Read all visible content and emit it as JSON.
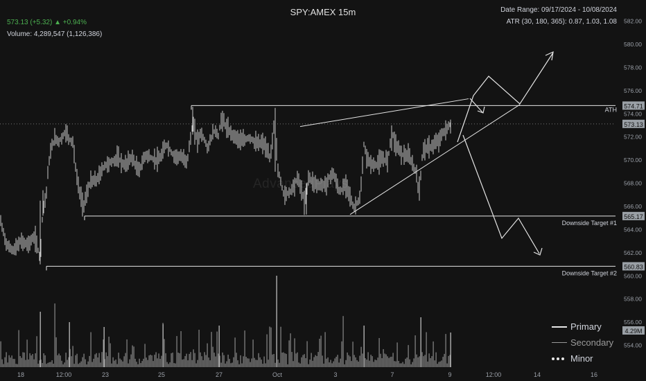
{
  "header": {
    "title": "SPY:AMEX 15m",
    "price": "573.13 (+5.32) ▲ +0.94%",
    "volume": "Volume: 4,289,547 (1,126,386)",
    "date_range": "Date Range: 09/17/2024 - 10/08/2024",
    "atr": "ATR (30, 180, 365): 0.87, 1.03, 1.08"
  },
  "watermark": "AdvancedPlays",
  "chart_data": {
    "type": "candlestick",
    "title": "SPY:AMEX 15m",
    "ylim": [
      553,
      583
    ],
    "y_ticks": [
      "554.00",
      "556.00",
      "558.00",
      "560.00",
      "562.00",
      "564.00",
      "566.00",
      "568.00",
      "570.00",
      "572.00",
      "574.00",
      "576.00",
      "578.00",
      "580.00",
      "582.00"
    ],
    "x_ticks": [
      "18",
      "12:00",
      "23",
      "25",
      "27",
      "Oct",
      "3",
      "7",
      "9",
      "12:00",
      "14",
      "16"
    ],
    "price_path": [
      [
        0,
        564.9
      ],
      [
        10,
        562.6
      ],
      [
        20,
        562.2
      ],
      [
        30,
        563.0
      ],
      [
        40,
        562.7
      ],
      [
        50,
        563.4
      ],
      [
        58,
        561.5
      ],
      [
        62,
        566.0
      ],
      [
        66,
        566.6
      ],
      [
        70,
        569.6
      ],
      [
        75,
        571.3
      ],
      [
        80,
        571.9
      ],
      [
        85,
        571.6
      ],
      [
        90,
        572.0
      ],
      [
        95,
        572.5
      ],
      [
        100,
        571.8
      ],
      [
        105,
        571.6
      ],
      [
        110,
        568.8
      ],
      [
        115,
        567.2
      ],
      [
        120,
        566.0
      ],
      [
        125,
        567.0
      ],
      [
        130,
        568.1
      ],
      [
        140,
        568.3
      ],
      [
        150,
        569.5
      ],
      [
        160,
        569.8
      ],
      [
        170,
        570.2
      ],
      [
        180,
        569.5
      ],
      [
        190,
        570.3
      ],
      [
        200,
        569.0
      ],
      [
        210,
        570.5
      ],
      [
        220,
        570.1
      ],
      [
        230,
        570.0
      ],
      [
        240,
        571.4
      ],
      [
        250,
        570.4
      ],
      [
        260,
        570.3
      ],
      [
        270,
        569.9
      ],
      [
        278,
        573.1
      ],
      [
        285,
        571.7
      ],
      [
        290,
        572.4
      ],
      [
        295,
        571.7
      ],
      [
        300,
        571.0
      ],
      [
        305,
        572.0
      ],
      [
        310,
        572.6
      ],
      [
        315,
        572.1
      ],
      [
        320,
        573.7
      ],
      [
        325,
        573.0
      ],
      [
        330,
        572.5
      ],
      [
        340,
        572.0
      ],
      [
        350,
        571.6
      ],
      [
        360,
        572.0
      ],
      [
        370,
        571.4
      ],
      [
        380,
        571.5
      ],
      [
        390,
        570.1
      ],
      [
        397,
        574.0
      ],
      [
        400,
        569.4
      ],
      [
        410,
        566.9
      ],
      [
        420,
        567.4
      ],
      [
        430,
        568.5
      ],
      [
        440,
        566.2
      ],
      [
        445,
        568.6
      ],
      [
        450,
        568.2
      ],
      [
        460,
        567.8
      ],
      [
        470,
        567.9
      ],
      [
        480,
        569.0
      ],
      [
        490,
        567.2
      ],
      [
        500,
        568.0
      ],
      [
        510,
        565.8
      ],
      [
        520,
        566.8
      ],
      [
        525,
        571.3
      ],
      [
        530,
        570.0
      ],
      [
        540,
        569.5
      ],
      [
        550,
        570.0
      ],
      [
        560,
        570.1
      ],
      [
        565,
        572.5
      ],
      [
        570,
        571.5
      ],
      [
        580,
        570.5
      ],
      [
        590,
        570.3
      ],
      [
        600,
        569.0
      ],
      [
        605,
        566.9
      ],
      [
        610,
        571.0
      ],
      [
        620,
        571.1
      ],
      [
        630,
        571.5
      ],
      [
        640,
        572.4
      ],
      [
        650,
        573.1
      ]
    ],
    "volume_scale_max": "4.29M",
    "horizontal_levels": [
      {
        "label": "ATH",
        "value": 574.71,
        "tag": "574.71"
      },
      {
        "label": "Downside Target #1",
        "value": 565.17,
        "tag": "565.17"
      },
      {
        "label": "Downside Target #2",
        "value": 560.83,
        "tag": "560.83"
      }
    ],
    "last_price_tag": "573.13",
    "volume_tag": "4.29M",
    "legend": [
      {
        "name": "Primary",
        "style": "solid-thick"
      },
      {
        "name": "Secondary",
        "style": "solid-thin"
      },
      {
        "name": "Minor",
        "style": "dotted"
      }
    ],
    "colors": {
      "background": "#131313",
      "bars": "#c8c8c8",
      "lines": "#e6e6e6",
      "tag_bg": "#9aa0a6",
      "price_up": "#4caf50"
    }
  }
}
